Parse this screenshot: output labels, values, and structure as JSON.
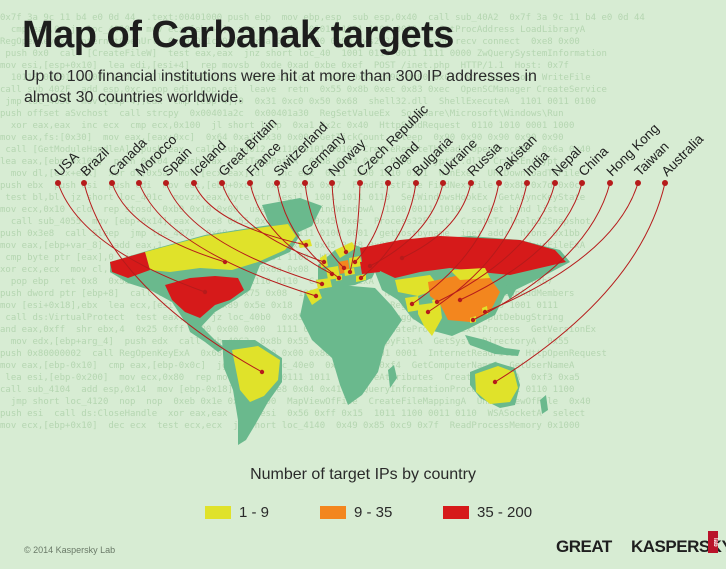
{
  "header": {
    "title": "Map of Carbanak targets",
    "subtitle": "Up to 100 financial institutions were hit at more than 300 IP addresses in almost 30 countries worldwide."
  },
  "map": {
    "targets": [
      {
        "name": "USA",
        "band": "35 - 200"
      },
      {
        "name": "Brazil",
        "band": "1 - 9"
      },
      {
        "name": "Canada",
        "band": "1 - 9"
      },
      {
        "name": "Morocco",
        "band": "1 - 9"
      },
      {
        "name": "Spain",
        "band": "1 - 9"
      },
      {
        "name": "Iceland",
        "band": "1 - 9"
      },
      {
        "name": "Great Britain",
        "band": "1 - 9"
      },
      {
        "name": "France",
        "band": "1 - 9"
      },
      {
        "name": "Switzerland",
        "band": "1 - 9"
      },
      {
        "name": "Germany",
        "band": "9 - 35"
      },
      {
        "name": "Norway",
        "band": "1 - 9"
      },
      {
        "name": "Czech Republic",
        "band": "1 - 9"
      },
      {
        "name": "Poland",
        "band": "1 - 9"
      },
      {
        "name": "Bulgaria",
        "band": "1 - 9"
      },
      {
        "name": "Ukraine",
        "band": "35 - 200"
      },
      {
        "name": "Russia",
        "band": "35 - 200"
      },
      {
        "name": "Pakistan",
        "band": "1 - 9"
      },
      {
        "name": "India",
        "band": "1 - 9"
      },
      {
        "name": "Nepal",
        "band": "1 - 9"
      },
      {
        "name": "China",
        "band": "9 - 35"
      },
      {
        "name": "Hong Kong",
        "band": "1 - 9"
      },
      {
        "name": "Taiwan",
        "band": "1 - 9"
      },
      {
        "name": "Australia",
        "band": "1 - 9"
      }
    ],
    "colors": {
      "land": "#6ab98d",
      "band_1_9": "#e0e22a",
      "band_9_35": "#f3861e",
      "band_35_200": "#d61a1a",
      "leader_line": "#b61b1b",
      "background": "#d7ecd3"
    }
  },
  "legend": {
    "title": "Number of target IPs by country",
    "items": [
      {
        "label": "1 - 9",
        "color": "#e0e22a"
      },
      {
        "label": "9 - 35",
        "color": "#f3861e"
      },
      {
        "label": "35 - 200",
        "color": "#d61a1a"
      }
    ]
  },
  "footer": {
    "copyright": "© 2014 Kaspersky Lab",
    "logo_great": "GREAT",
    "logo_kaspersky": "KASPERSKY",
    "logo_lab": "lab"
  }
}
